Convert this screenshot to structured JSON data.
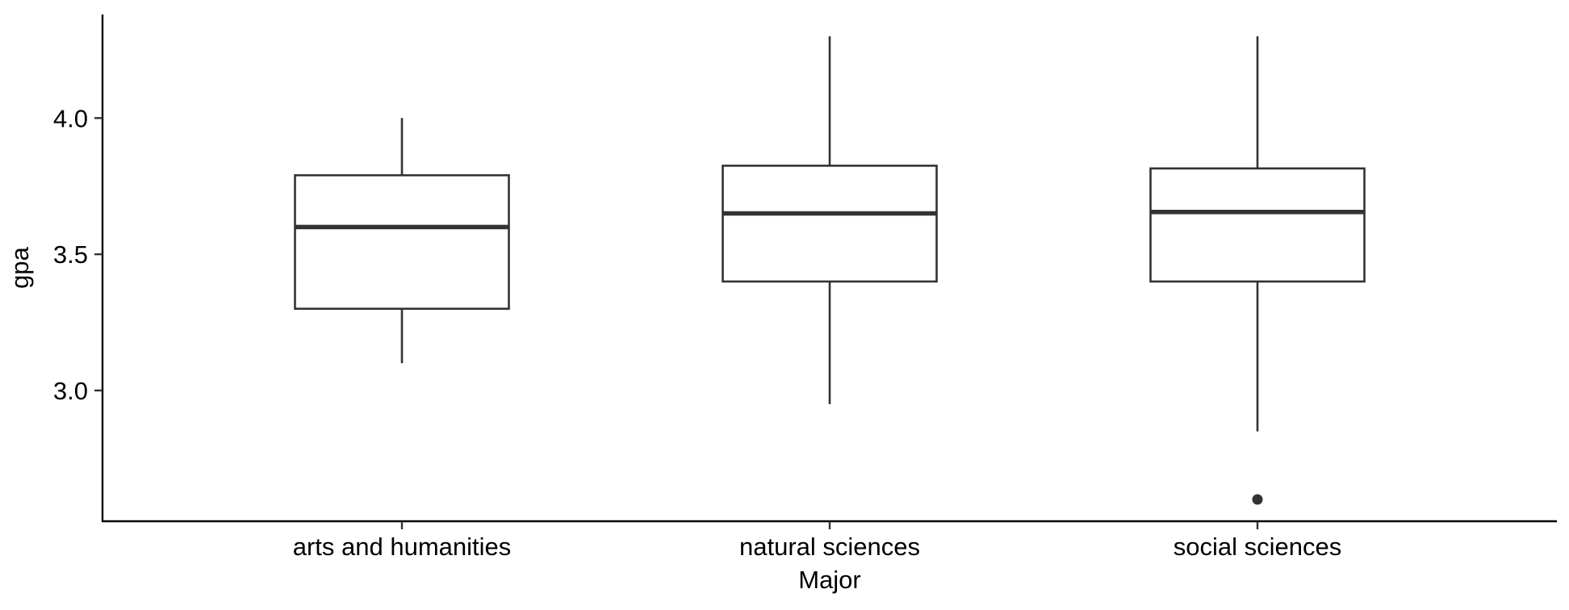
{
  "chart_data": {
    "type": "boxplot",
    "title": "",
    "xlabel": "Major",
    "ylabel": "gpa",
    "ylim": [
      2.52,
      4.38
    ],
    "yticks": [
      3.0,
      3.5,
      4.0
    ],
    "ytick_labels": [
      "3.0",
      "3.5",
      "4.0"
    ],
    "grid": false,
    "legend": "none",
    "categories": [
      "arts and humanities",
      "natural sciences",
      "social sciences"
    ],
    "boxes": [
      {
        "category": "arts and humanities",
        "whisker_low": 3.1,
        "q1": 3.3,
        "median": 3.6,
        "q3": 3.79,
        "whisker_high": 4.0,
        "outliers": []
      },
      {
        "category": "natural sciences",
        "whisker_low": 2.95,
        "q1": 3.4,
        "median": 3.65,
        "q3": 3.825,
        "whisker_high": 4.3,
        "outliers": []
      },
      {
        "category": "social sciences",
        "whisker_low": 2.85,
        "q1": 3.4,
        "median": 3.655,
        "q3": 3.815,
        "whisker_high": 4.3,
        "outliers": [
          2.6
        ]
      }
    ],
    "colors": {
      "box_fill": "#ffffff",
      "box_stroke": "#333333",
      "axis": "#000000"
    }
  }
}
